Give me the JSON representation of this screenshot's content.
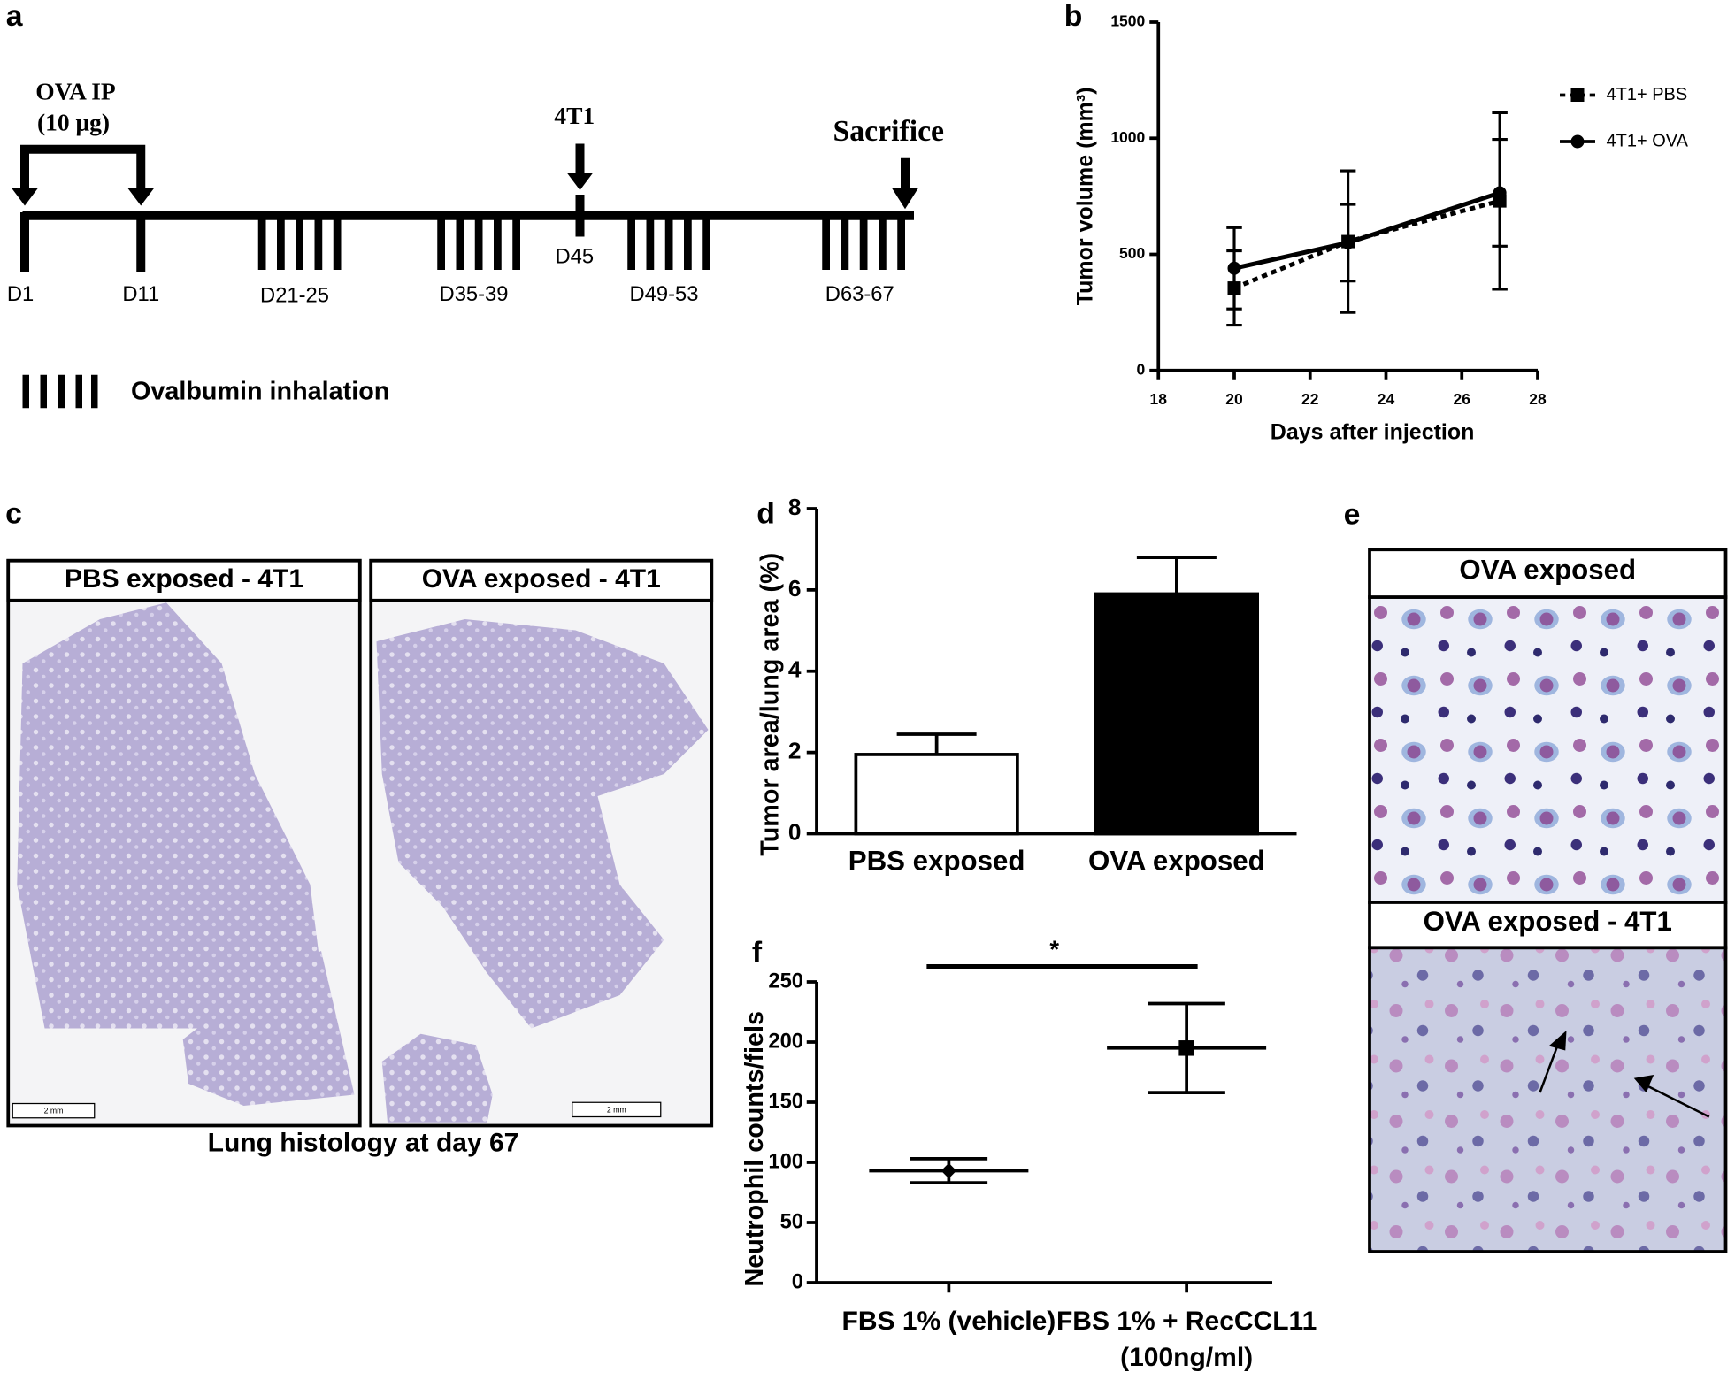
{
  "panel_a": {
    "label": "a",
    "injection": [
      "OVA IP",
      "(10 μg)"
    ],
    "challenge": "4T1",
    "end": "Sacrifice",
    "days": [
      "D1",
      "D11",
      "D21-25",
      "D35-39",
      "D45",
      "D49-53",
      "D63-67"
    ],
    "legend": "Ovalbumin inhalation"
  },
  "panel_c": {
    "label": "c",
    "titles": [
      "PBS exposed - 4T1",
      "OVA exposed - 4T1"
    ],
    "scale_bar": "2 mm",
    "caption": "Lung histology at day 67"
  },
  "panel_e": {
    "label": "e",
    "titles": [
      "OVA exposed",
      "OVA exposed - 4T1"
    ]
  },
  "chart_data": [
    {
      "type": "line",
      "panel": "b",
      "ylabel": "Tumor volume (mm³)",
      "xlabel": "Days after injection",
      "x": [
        20,
        23,
        27
      ],
      "xlim": [
        18,
        28
      ],
      "xticks": [
        18,
        20,
        22,
        24,
        26,
        28
      ],
      "ylim": [
        0,
        1500
      ],
      "yticks": [
        0,
        500,
        1000,
        1500
      ],
      "legend": "upper right",
      "series": [
        {
          "name": "4T1+ PBS",
          "color": "#000000",
          "line_style": "dotted",
          "marker": "square",
          "values": [
            355,
            555,
            730
          ],
          "errors": [
            160,
            305,
            380
          ]
        },
        {
          "name": "4T1+ OVA",
          "color": "#000000",
          "line_style": "solid",
          "marker": "circle",
          "values": [
            440,
            550,
            765
          ],
          "errors": [
            175,
            165,
            230
          ]
        }
      ]
    },
    {
      "type": "bar",
      "panel": "d",
      "ylabel": "Tumor area/lung area (%)",
      "categories": [
        "PBS exposed",
        "OVA exposed"
      ],
      "values": [
        1.95,
        5.9
      ],
      "errors": [
        0.5,
        0.9
      ],
      "colors": [
        "#ffffff",
        "#000000"
      ],
      "ylim": [
        0,
        8
      ],
      "yticks": [
        0,
        2,
        4,
        6,
        8
      ]
    },
    {
      "type": "errorbar",
      "panel": "f",
      "ylabel": "Neutrophil counts/fiels",
      "categories": [
        [
          "FBS 1% (vehicle)"
        ],
        [
          "FBS 1% + RecCCL11",
          "(100ng/ml)"
        ]
      ],
      "values": [
        93,
        195
      ],
      "errors": [
        10,
        37
      ],
      "markers": [
        "diamond",
        "square"
      ],
      "ylim": [
        0,
        250
      ],
      "yticks": [
        0,
        50,
        100,
        150,
        200,
        250
      ],
      "significance": "*"
    }
  ]
}
